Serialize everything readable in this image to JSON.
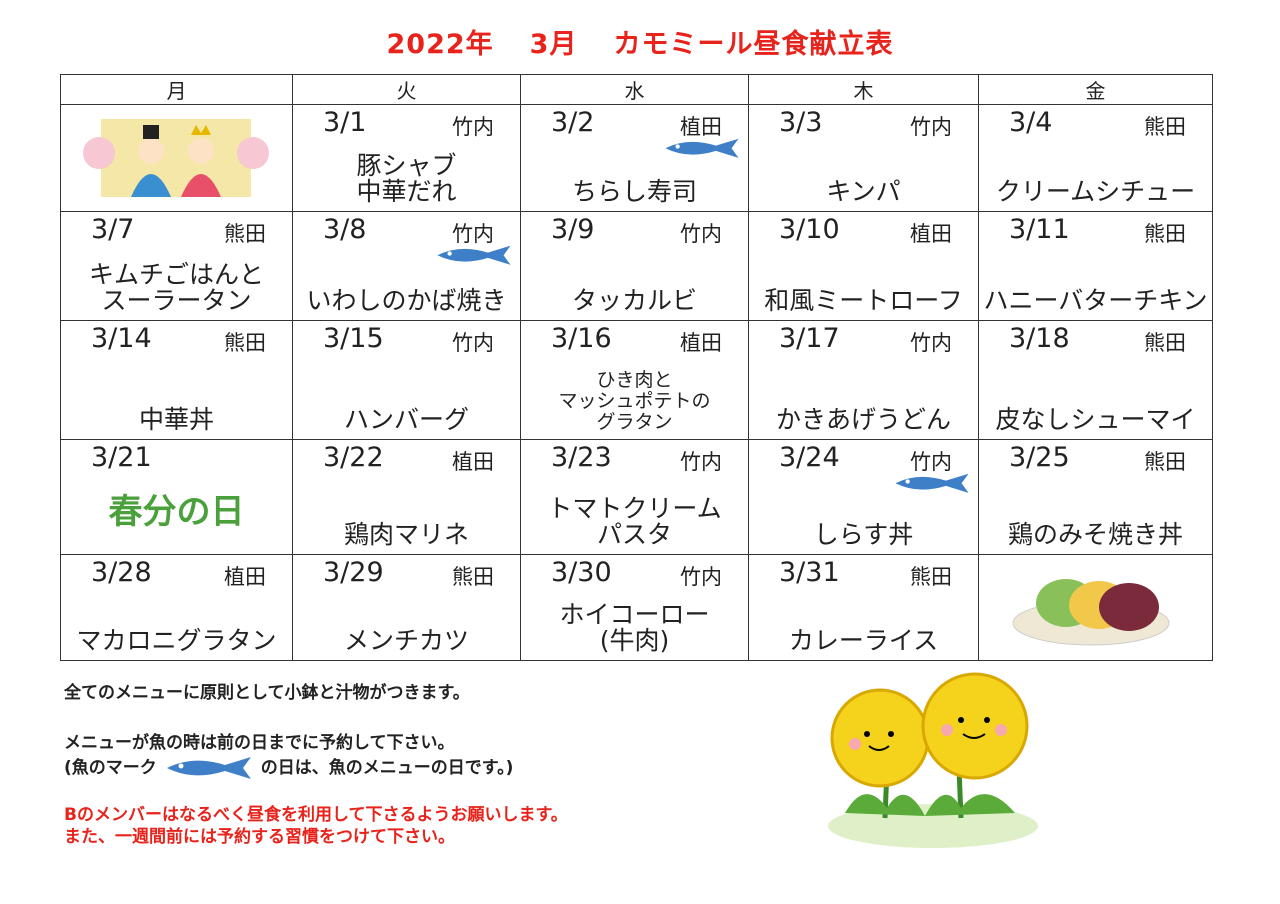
{
  "title": {
    "year": "2022年",
    "month": "3月",
    "heading": "カモミール昼食献立表"
  },
  "weekdays": [
    "月",
    "火",
    "水",
    "木",
    "金"
  ],
  "weeks": [
    [
      {
        "image": "hina-dolls"
      },
      {
        "date": "3/1",
        "name": "竹内",
        "menu": [
          "豚シャブ",
          "中華だれ"
        ]
      },
      {
        "date": "3/2",
        "name": "植田",
        "menu": [
          "ちらし寿司"
        ],
        "fish": true
      },
      {
        "date": "3/3",
        "name": "竹内",
        "menu": [
          "キンパ"
        ]
      },
      {
        "date": "3/4",
        "name": "熊田",
        "menu": [
          "クリームシチュー"
        ]
      }
    ],
    [
      {
        "date": "3/7",
        "name": "熊田",
        "menu": [
          "キムチごはんと",
          "スーラータン"
        ]
      },
      {
        "date": "3/8",
        "name": "竹内",
        "menu": [
          "いわしのかば焼き"
        ],
        "fish": true
      },
      {
        "date": "3/9",
        "name": "竹内",
        "menu": [
          "タッカルビ"
        ]
      },
      {
        "date": "3/10",
        "name": "植田",
        "menu": [
          "和風ミートローフ"
        ]
      },
      {
        "date": "3/11",
        "name": "熊田",
        "menu": [
          "ハニーバターチキン"
        ]
      }
    ],
    [
      {
        "date": "3/14",
        "name": "熊田",
        "menu": [
          "中華丼"
        ]
      },
      {
        "date": "3/15",
        "name": "竹内",
        "menu": [
          "ハンバーグ"
        ]
      },
      {
        "date": "3/16",
        "name": "植田",
        "menu": [
          "ひき肉と",
          "マッシュポテトの",
          "グラタン"
        ]
      },
      {
        "date": "3/17",
        "name": "竹内",
        "menu": [
          "かきあげうどん"
        ]
      },
      {
        "date": "3/18",
        "name": "熊田",
        "menu": [
          "皮なしシューマイ"
        ]
      }
    ],
    [
      {
        "date": "3/21",
        "holiday": "春分の日"
      },
      {
        "date": "3/22",
        "name": "植田",
        "menu": [
          "鶏肉マリネ"
        ]
      },
      {
        "date": "3/23",
        "name": "竹内",
        "menu": [
          "トマトクリーム",
          "パスタ"
        ]
      },
      {
        "date": "3/24",
        "name": "竹内",
        "menu": [
          "しらす丼"
        ],
        "fish": true
      },
      {
        "date": "3/25",
        "name": "熊田",
        "menu": [
          "鶏のみそ焼き丼"
        ]
      }
    ],
    [
      {
        "date": "3/28",
        "name": "植田",
        "menu": [
          "マカロニグラタン"
        ]
      },
      {
        "date": "3/29",
        "name": "熊田",
        "menu": [
          "メンチカツ"
        ]
      },
      {
        "date": "3/30",
        "name": "竹内",
        "menu": [
          "ホイコーロー",
          "(牛肉)"
        ]
      },
      {
        "date": "3/31",
        "name": "熊田",
        "menu": [
          "カレーライス"
        ]
      },
      {
        "image": "ohagi"
      }
    ]
  ],
  "notes": {
    "line1": "全てのメニューに原則として小鉢と汁物がつきます。",
    "line2": "メニューが魚の時は前の日までに予約して下さい。",
    "line3a": "(魚のマーク",
    "line3b": "の日は、魚のメニューの日です。)",
    "line4": "Bのメンバーはなるべく昼食を利用して下さるようお願いします。",
    "line5": "また、一週間前には予約する習慣をつけて下さい。"
  },
  "colors": {
    "title": "#e8231b",
    "fish": "#3f7fc8",
    "dandelion": "#f5d21c"
  }
}
